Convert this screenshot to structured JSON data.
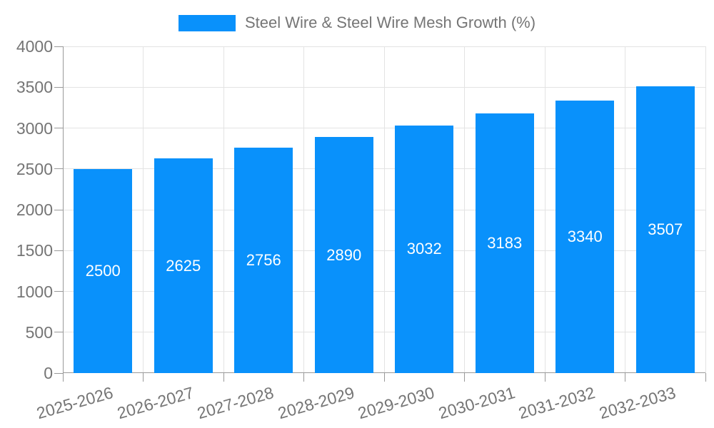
{
  "legend": {
    "label": "Steel Wire & Steel Wire Mesh Growth (%)",
    "swatch_color": "#0991fb"
  },
  "chart_data": {
    "type": "bar",
    "title": "Steel Wire & Steel Wire Mesh Growth (%)",
    "categories": [
      "2025-2026",
      "2026-2027",
      "2027-2028",
      "2028-2029",
      "2029-2030",
      "2030-2031",
      "2031-2032",
      "2032-2033"
    ],
    "values": [
      2500,
      2625,
      2756,
      2890,
      3032,
      3183,
      3340,
      3507
    ],
    "value_labels_shown_inside_bars": true,
    "xlabel": "",
    "ylabel": "",
    "ylim": [
      0,
      4000
    ],
    "yticks": [
      0,
      500,
      1000,
      1500,
      2000,
      2500,
      3000,
      3500,
      4000
    ],
    "grid": true,
    "legend_position": "top-center",
    "x_label_rotation_deg": -16,
    "colors": {
      "bar": "#0991fb",
      "bar_value_text": "#ffffff",
      "axis_text": "#757575",
      "axis_line": "#999999",
      "gridline": "#e3e3e3",
      "background": "#ffffff"
    }
  }
}
